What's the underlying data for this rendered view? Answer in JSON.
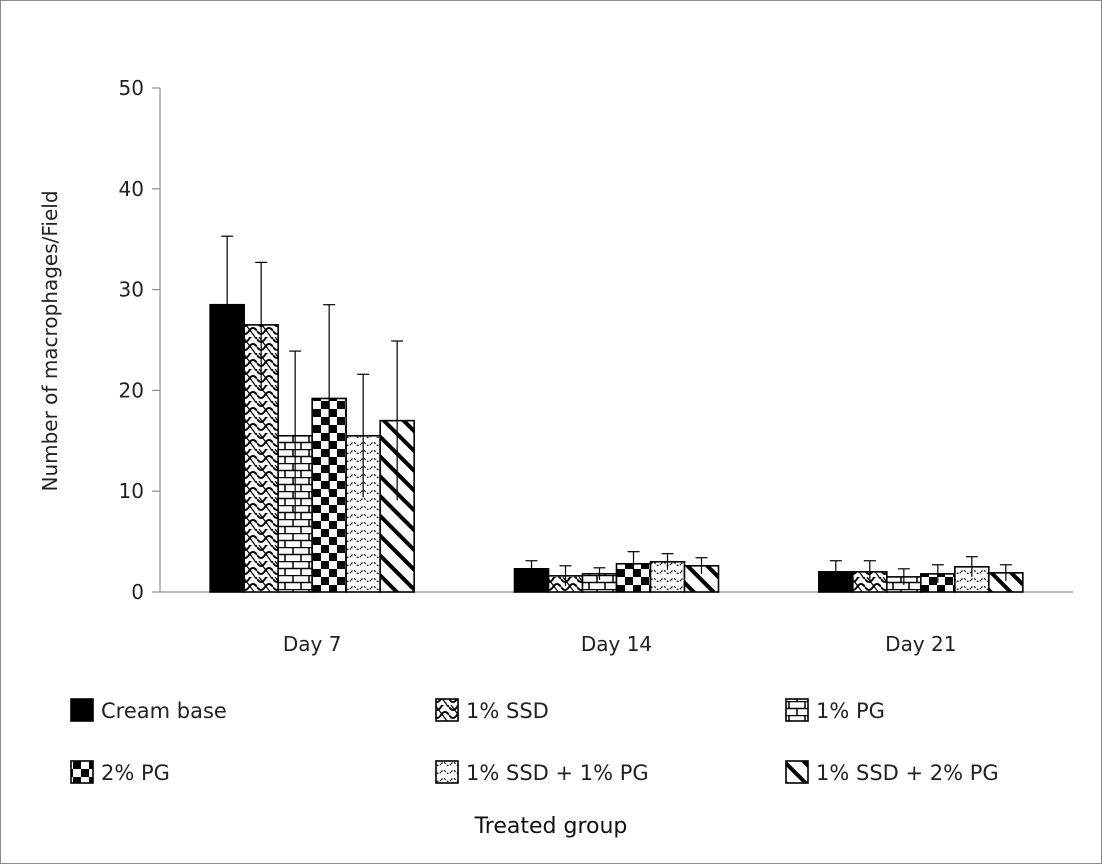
{
  "chart_data": {
    "type": "bar",
    "categories": [
      "Day 7",
      "Day 14",
      "Day 21"
    ],
    "series": [
      {
        "name": "Cream base",
        "values": [
          28.5,
          2.3,
          2.0
        ],
        "errors": [
          6.8,
          0.8,
          1.1
        ],
        "pattern": "solid"
      },
      {
        "name": "1% SSD",
        "values": [
          26.5,
          1.6,
          2.0
        ],
        "errors": [
          6.2,
          1.0,
          1.1
        ],
        "pattern": "wave"
      },
      {
        "name": "1% PG",
        "values": [
          15.5,
          1.8,
          1.5
        ],
        "errors": [
          8.4,
          0.6,
          0.8
        ],
        "pattern": "brick"
      },
      {
        "name": "2% PG",
        "values": [
          19.2,
          2.8,
          1.8
        ],
        "errors": [
          9.3,
          1.2,
          0.9
        ],
        "pattern": "checker"
      },
      {
        "name": "1% SSD + 1% PG",
        "values": [
          15.5,
          3.0,
          2.5
        ],
        "errors": [
          6.1,
          0.8,
          1.0
        ],
        "pattern": "dots"
      },
      {
        "name": "1% SSD + 2% PG",
        "values": [
          17.0,
          2.6,
          1.9
        ],
        "errors": [
          7.9,
          0.8,
          0.8
        ],
        "pattern": "diagonal"
      }
    ],
    "ylabel": "Number of macrophages/Field",
    "xlabel": "Treated group",
    "ylim": [
      0,
      50
    ],
    "yticks": [
      "0",
      "10",
      "20",
      "30",
      "40",
      "50"
    ],
    "grid": false,
    "legend_position": "bottom",
    "colors": {
      "bar_fill": "#000000",
      "bar_background": "#ffffff",
      "axis": "#8c8c8c"
    }
  }
}
